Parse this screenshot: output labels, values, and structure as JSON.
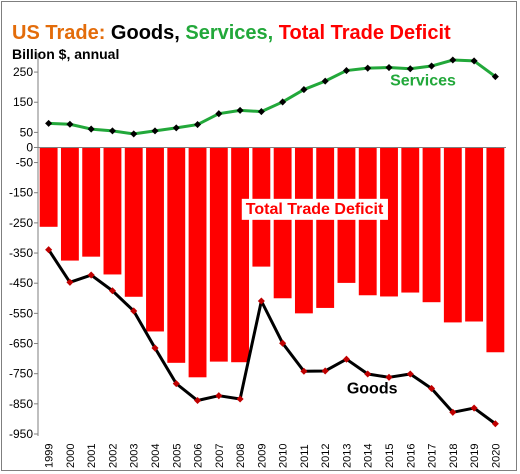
{
  "title_parts": [
    {
      "text": "US Trade: ",
      "color": "#e36c0a"
    },
    {
      "text": "Goods, ",
      "color": "#000000"
    },
    {
      "text": "Services, ",
      "color": "#22a83a"
    },
    {
      "text": "Total Trade Deficit",
      "color": "#ff0000"
    }
  ],
  "colors": {
    "goods": "#000000",
    "services": "#22a83a",
    "deficit": "#ff0000",
    "marker": "#c00000"
  },
  "chart_data": {
    "type": "bar",
    "title": "US Trade: Goods, Services, Total Trade Deficit",
    "subtitle": "Billion $, annual",
    "categories": [
      "1999",
      "2000",
      "2001",
      "2002",
      "2003",
      "2004",
      "2005",
      "2006",
      "2007",
      "2008",
      "2009",
      "2010",
      "2011",
      "2012",
      "2013",
      "2014",
      "2015",
      "2016",
      "2017",
      "2018",
      "2019",
      "2020"
    ],
    "ylim": [
      -950,
      300
    ],
    "yticks": [
      250,
      150,
      50,
      0,
      -50,
      -150,
      -250,
      -350,
      -450,
      -550,
      -650,
      -750,
      -850,
      -950
    ],
    "grid": false,
    "legend": "none",
    "series": [
      {
        "name": "Total Trade Deficit",
        "type": "bar",
        "values": [
          -263,
          -375,
          -362,
          -421,
          -495,
          -610,
          -714,
          -762,
          -710,
          -712,
          -395,
          -500,
          -550,
          -532,
          -449,
          -490,
          -494,
          -481,
          -513,
          -580,
          -577,
          -679
        ]
      },
      {
        "name": "Services",
        "type": "line",
        "values": [
          80,
          77,
          61,
          55,
          45,
          55,
          65,
          76,
          112,
          123,
          119,
          151,
          192,
          220,
          255,
          263,
          265,
          261,
          270,
          290,
          287,
          235
        ]
      },
      {
        "name": "Goods",
        "type": "line",
        "values": [
          -339,
          -447,
          -423,
          -475,
          -542,
          -665,
          -783,
          -839,
          -823,
          -834,
          -509,
          -649,
          -742,
          -741,
          -702,
          -751,
          -762,
          -751,
          -799,
          -878,
          -864,
          -916
        ]
      }
    ],
    "annotations": [
      {
        "text": "Services",
        "series": "Services"
      },
      {
        "text": "Total Trade Deficit",
        "series": "Total Trade Deficit"
      },
      {
        "text": "Goods",
        "series": "Goods"
      }
    ]
  }
}
